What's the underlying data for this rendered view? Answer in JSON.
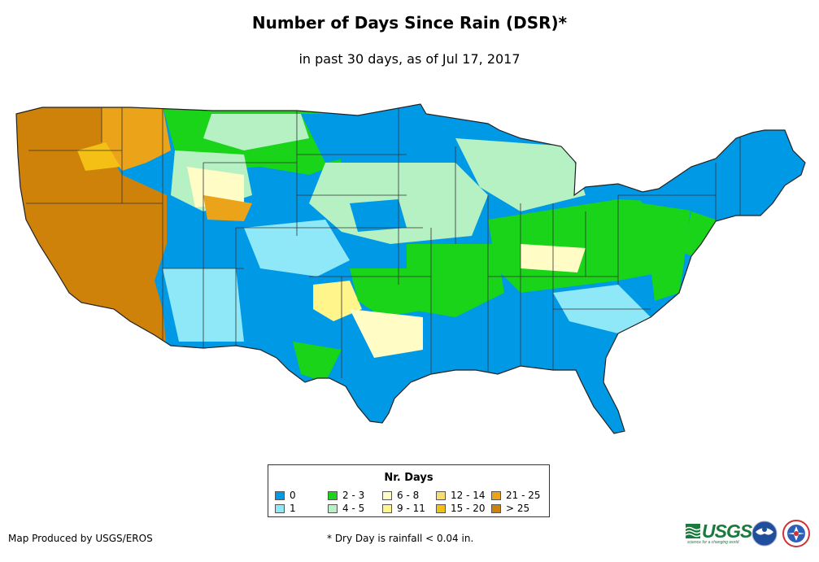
{
  "title": "Number of Days Since Rain (DSR)*",
  "subtitle": "in past 30 days, as of Jul 17, 2017",
  "legend": {
    "title": "Nr. Days",
    "items": [
      {
        "label": "0",
        "color": "#0099e6"
      },
      {
        "label": "1",
        "color": "#8ee8f7"
      },
      {
        "label": "2 - 3",
        "color": "#19d419"
      },
      {
        "label": "4 - 5",
        "color": "#b6f1c4"
      },
      {
        "label": "6 - 8",
        "color": "#fffcc6"
      },
      {
        "label": "9 - 11",
        "color": "#fff58a"
      },
      {
        "label": "12 - 14",
        "color": "#f7de6e"
      },
      {
        "label": "15 - 20",
        "color": "#f5c016"
      },
      {
        "label": "21 - 25",
        "color": "#eba319"
      },
      {
        "label": "> 25",
        "color": "#cf820a"
      }
    ]
  },
  "footer": {
    "producer": "Map Produced by USGS/EROS",
    "footnote": "* Dry Day is rainfall < 0.04 in."
  },
  "logos": {
    "usgs": "USGS",
    "usgs_tagline": "science for a changing world",
    "noaa": "NOAA",
    "nws": "NATIONAL WEATHER SERVICE"
  }
}
